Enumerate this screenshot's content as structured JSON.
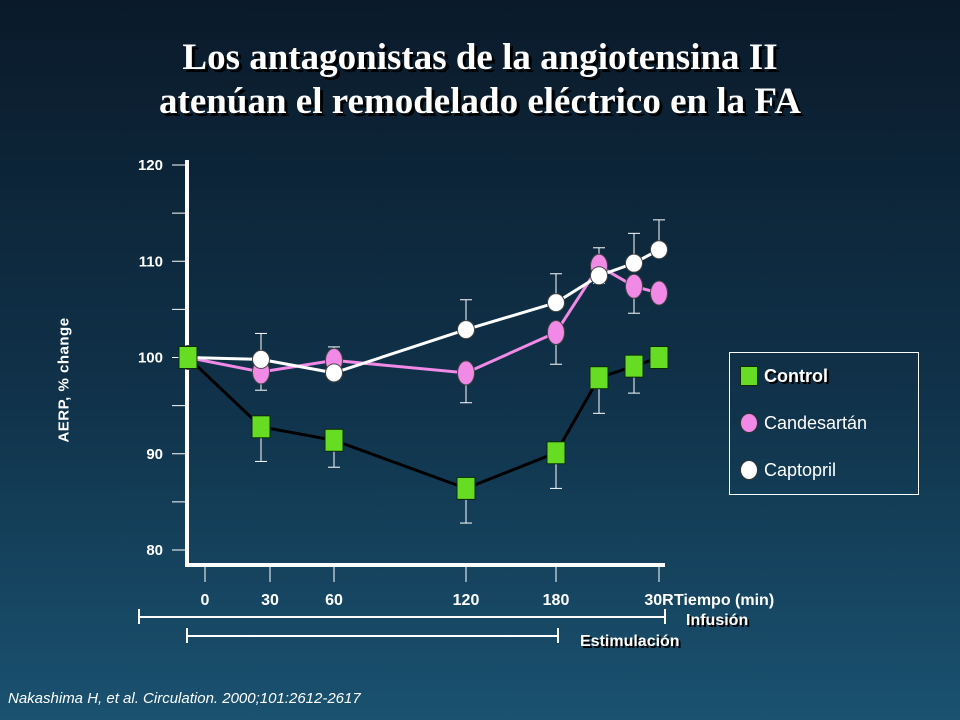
{
  "title": {
    "line1": "Los antagonistas de la angiotensina II",
    "line2": "atenúan el remodelado eléctrico en la FA"
  },
  "citation": "Nakashima H, et al. Circulation. 2000;101:2612-2617",
  "annotations": {
    "infusion": "Infusión",
    "stimulation": "Estimulación"
  },
  "colors": {
    "control": "#66dd22",
    "candesartan": "#f08ae6",
    "captopril": "#ffffff",
    "control_line": "#000000"
  },
  "chart_data": {
    "type": "line",
    "ylabel": "AERP, % change",
    "xlabel": "Tiempo (min)",
    "ylim": [
      80,
      120
    ],
    "yticks": [
      80,
      90,
      100,
      110,
      120
    ],
    "x": [
      "0",
      "30",
      "60",
      "120",
      "180",
      "",
      "",
      "30R"
    ],
    "x_tick_labels": [
      "0",
      "30",
      "60",
      "120",
      "180",
      "30R"
    ],
    "legend_position": "right",
    "series": [
      {
        "name": "Control",
        "marker": "square",
        "values": [
          100,
          92.8,
          91.4,
          86.4,
          90.1,
          97.9,
          99.1,
          100.0
        ],
        "error": [
          null,
          3.6,
          2.8,
          3.6,
          3.7,
          3.7,
          2.8,
          null
        ]
      },
      {
        "name": "Candesartán",
        "marker": "ellipse",
        "values": [
          100,
          98.5,
          99.7,
          98.4,
          102.6,
          109.5,
          107.4,
          106.7
        ],
        "error": [
          null,
          1.9,
          1.4,
          3.1,
          3.3,
          1.8,
          2.8,
          null
        ]
      },
      {
        "name": "Captopril",
        "marker": "circle",
        "values": [
          100,
          99.8,
          98.4,
          102.9,
          105.7,
          108.5,
          109.8,
          111.2
        ],
        "error": [
          null,
          2.7,
          2.7,
          3.1,
          3.0,
          2.9,
          3.1,
          3.1
        ]
      }
    ]
  }
}
